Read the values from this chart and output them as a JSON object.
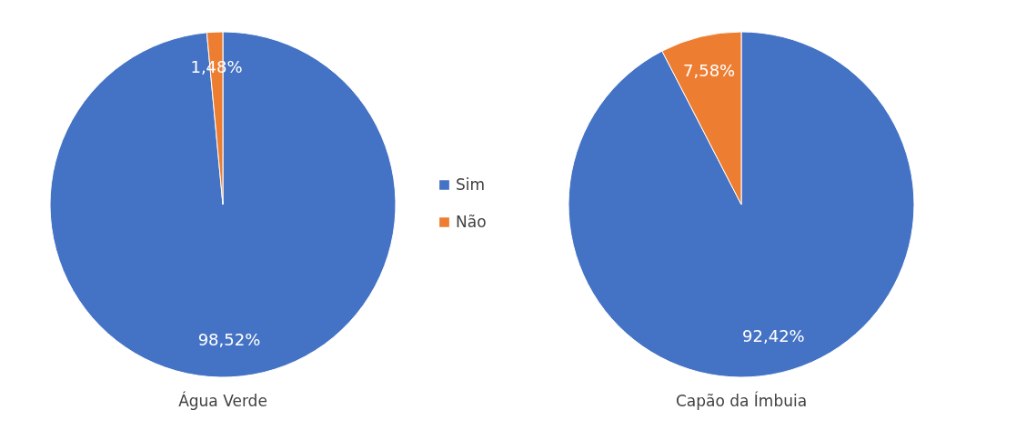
{
  "chart_data": [
    {
      "type": "pie",
      "xlabel": "Água Verde",
      "categories": [
        "Sim",
        "Não"
      ],
      "values": [
        98.52,
        1.48
      ],
      "value_labels": [
        "98,52%",
        "1,48%"
      ],
      "colors": [
        "#4472c4",
        "#ed7d31"
      ],
      "legend": "right"
    },
    {
      "type": "pie",
      "xlabel": "Capão da Ímbuia",
      "categories": [
        null,
        null
      ],
      "values": [
        92.42,
        7.58
      ],
      "value_labels": [
        "92,42%",
        "7,58%"
      ],
      "colors": [
        "#4472c4",
        "#ed7d31"
      ]
    }
  ]
}
